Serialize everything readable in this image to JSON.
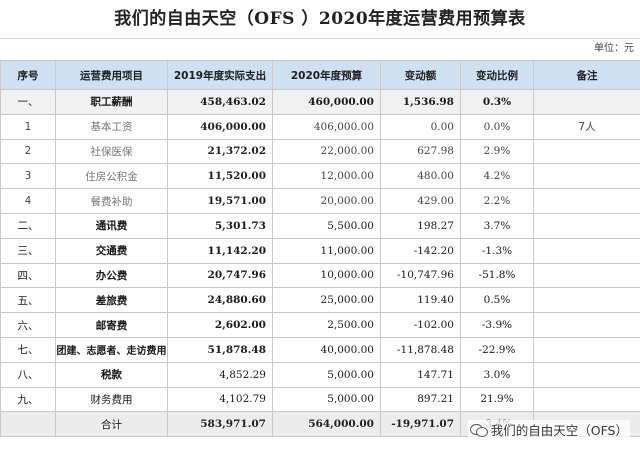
{
  "title": "我们的自由天空（OFS ）2020年度运营费用预算表",
  "unit": "单位：元",
  "headers": {
    "seq": "序号",
    "item": "运营费用项目",
    "actual2019": "2019年度实际支出",
    "budget2020": "2020年度预算",
    "change": "变动额",
    "ratio": "变动比例",
    "note": "备注"
  },
  "rows": [
    {
      "seq": "一、",
      "item": "职工薪酬",
      "actual2019": "458,463.02",
      "budget2020": "460,000.00",
      "change": "1,536.98",
      "ratio": "0.3%",
      "note": ""
    },
    {
      "seq": "1",
      "item": "基本工资",
      "actual2019": "406,000.00",
      "budget2020": "406,000.00",
      "change": "0.00",
      "ratio": "0.0%",
      "note": "7人"
    },
    {
      "seq": "2",
      "item": "社保医保",
      "actual2019": "21,372.02",
      "budget2020": "22,000.00",
      "change": "627.98",
      "ratio": "2.9%",
      "note": ""
    },
    {
      "seq": "3",
      "item": "住房公积金",
      "actual2019": "11,520.00",
      "budget2020": "12,000.00",
      "change": "480.00",
      "ratio": "4.2%",
      "note": ""
    },
    {
      "seq": "4",
      "item": "餐费补助",
      "actual2019": "19,571.00",
      "budget2020": "20,000.00",
      "change": "429.00",
      "ratio": "2.2%",
      "note": ""
    },
    {
      "seq": "二、",
      "item": "通讯费",
      "actual2019": "5,301.73",
      "budget2020": "5,500.00",
      "change": "198.27",
      "ratio": "3.7%",
      "note": ""
    },
    {
      "seq": "三、",
      "item": "交通费",
      "actual2019": "11,142.20",
      "budget2020": "11,000.00",
      "change": "-142.20",
      "ratio": "-1.3%",
      "note": ""
    },
    {
      "seq": "四、",
      "item": "办公费",
      "actual2019": "20,747.96",
      "budget2020": "10,000.00",
      "change": "-10,747.96",
      "ratio": "-51.8%",
      "note": ""
    },
    {
      "seq": "五、",
      "item": "差旅费",
      "actual2019": "24,880.60",
      "budget2020": "25,000.00",
      "change": "119.40",
      "ratio": "0.5%",
      "note": ""
    },
    {
      "seq": "六、",
      "item": "邮寄费",
      "actual2019": "2,602.00",
      "budget2020": "2,500.00",
      "change": "-102.00",
      "ratio": "-3.9%",
      "note": ""
    },
    {
      "seq": "七、",
      "item": "团建、志愿者、走访费用",
      "actual2019": "51,878.48",
      "budget2020": "40,000.00",
      "change": "-11,878.48",
      "ratio": "-22.9%",
      "note": ""
    },
    {
      "seq": "八、",
      "item": "税款",
      "actual2019": "4,852.29",
      "budget2020": "5,000.00",
      "change": "147.71",
      "ratio": "3.0%",
      "note": ""
    },
    {
      "seq": "九、",
      "item": "财务费用",
      "actual2019": "4,102.79",
      "budget2020": "5,000.00",
      "change": "897.21",
      "ratio": "21.9%",
      "note": ""
    }
  ],
  "total": {
    "seq": "",
    "item": "合计",
    "actual2019": "583,971.07",
    "budget2020": "564,000.00",
    "change": "-19,971.07",
    "ratio": "-3.4%",
    "note": ""
  },
  "watermark": {
    "text": "我们的自由天空（OFS）",
    "icon": "wechat-icon"
  }
}
